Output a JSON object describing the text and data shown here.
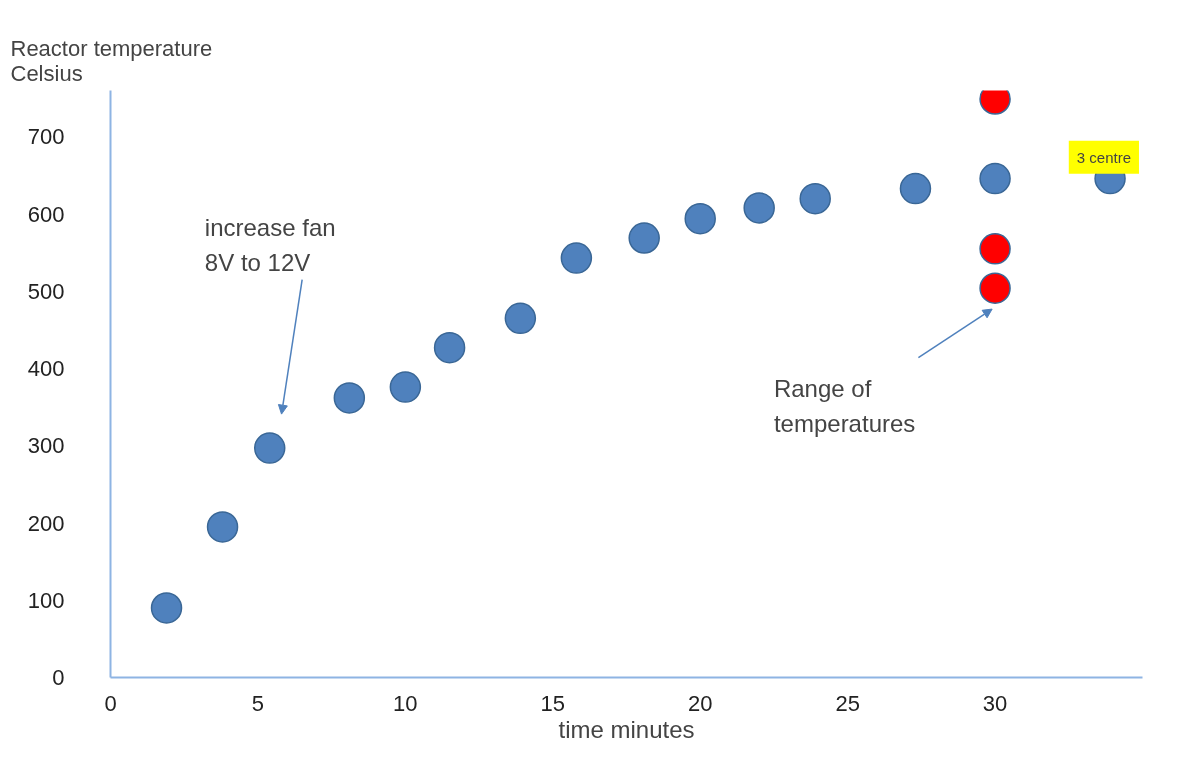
{
  "chart_data": {
    "type": "scatter",
    "xlabel": "time minutes",
    "ylabel": "Reactor temperature\nCelsius",
    "xlim": [
      0,
      35
    ],
    "xticks": [
      0,
      5,
      10,
      15,
      20,
      25,
      30
    ],
    "ylim": [
      0,
      760
    ],
    "yticks": [
      0,
      100,
      200,
      300,
      400,
      500,
      600,
      700
    ],
    "grid": false,
    "marker": "circle",
    "series": [
      {
        "color": "#4f81bd",
        "x": [
          1.9,
          3.8,
          5.4,
          8.1,
          10,
          11.5,
          13.9,
          15.8,
          18.1,
          20,
          22,
          23.9,
          27.3,
          30,
          33.9
        ],
        "values": [
          90,
          195,
          297,
          362,
          376,
          427,
          465,
          543,
          569,
          594,
          608,
          620,
          633,
          646,
          646
        ]
      },
      {
        "color": "#ff0000",
        "x": [
          30,
          30,
          30
        ],
        "values": [
          749,
          555,
          504
        ]
      }
    ],
    "annotations": [
      "increase fan\n8V to 12V",
      "Range of\ntemperatures",
      "3 centre"
    ]
  }
}
